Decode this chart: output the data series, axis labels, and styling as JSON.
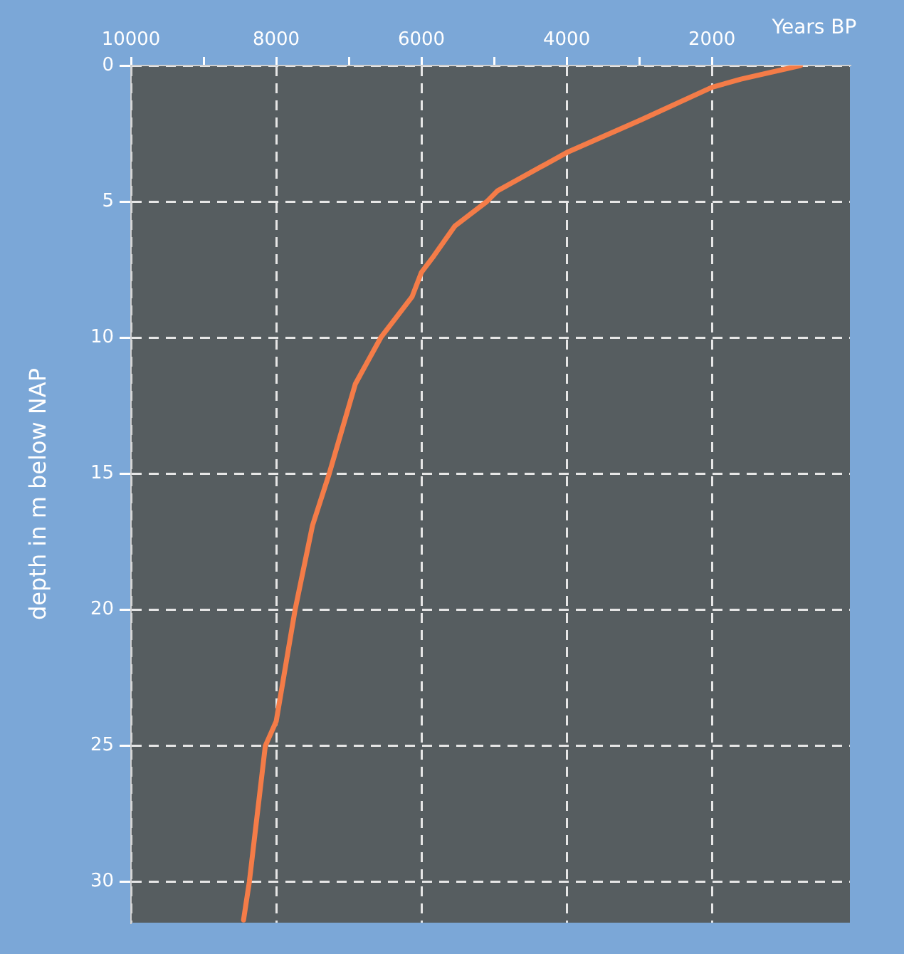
{
  "chart_data": {
    "type": "line",
    "xlabel": "Years BP",
    "ylabel": "depth in m below NAP",
    "xlim": [
      10000,
      100
    ],
    "xticks": [
      10000,
      {
        "value": 9000,
        "label": null
      },
      8000,
      {
        "value": 7000,
        "label": null
      },
      6000,
      {
        "value": 5000,
        "label": null
      },
      4000,
      {
        "value": 3000,
        "label": null
      },
      2000
    ],
    "ylim": [
      31.5,
      0
    ],
    "yticks": [
      0,
      5,
      10,
      15,
      20,
      25,
      30
    ],
    "grid": true,
    "legend": false,
    "marker": "none",
    "line_style": "solid",
    "series": [
      {
        "color": "#f47c48",
        "x": [
          780,
          1600,
          2000,
          2980,
          4000,
          4950,
          5100,
          5540,
          5830,
          6000,
          6130,
          6560,
          6910,
          7270,
          7500,
          7740,
          8000,
          8150,
          8370,
          8450
        ],
        "values": [
          0,
          0.5,
          0.8,
          2.0,
          3.2,
          4.6,
          5.0,
          5.9,
          7.0,
          7.6,
          8.5,
          10.0,
          11.7,
          15.0,
          16.9,
          20.0,
          24.1,
          25.0,
          30.0,
          31.4
        ]
      }
    ]
  }
}
